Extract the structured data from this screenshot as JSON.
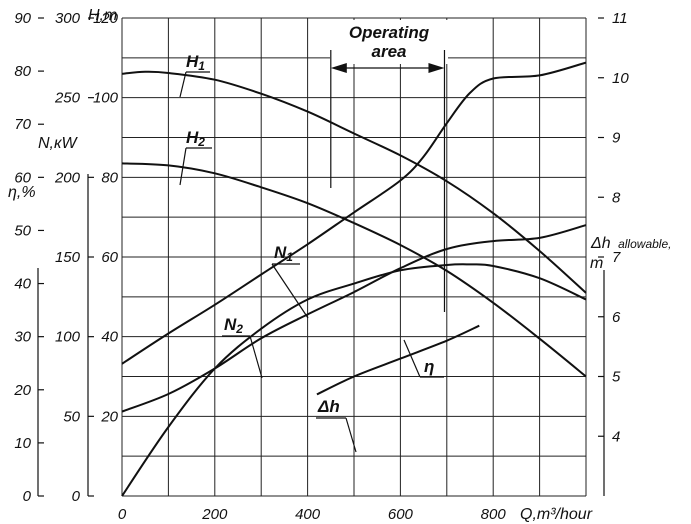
{
  "chart_data": {
    "type": "line",
    "xlabel": "Q,m³/hour",
    "xlim": [
      0,
      1000
    ],
    "x_ticks": [
      0,
      200,
      400,
      600,
      800
    ],
    "axes": {
      "H": {
        "label": "H,m",
        "lim": [
          0,
          120
        ],
        "ticks": [
          20,
          40,
          60,
          80,
          100,
          120
        ]
      },
      "N": {
        "label": "N,кW",
        "lim": [
          0,
          300
        ],
        "ticks": [
          0,
          50,
          100,
          150,
          200,
          250,
          300
        ]
      },
      "eta": {
        "label": "η,%",
        "lim": [
          0,
          90
        ],
        "ticks": [
          0,
          10,
          20,
          30,
          40,
          50,
          60,
          70,
          80,
          90
        ]
      },
      "dh": {
        "label_main": "Δh",
        "label_sub": "allowable,",
        "label_unit": "m",
        "lim": [
          3,
          11
        ],
        "ticks": [
          4,
          5,
          6,
          7,
          8,
          9,
          10,
          11
        ]
      }
    },
    "operating_area": {
      "label_line1": "Operating",
      "label_line2": "area",
      "x": [
        450,
        695
      ]
    },
    "series": [
      {
        "name": "H1",
        "label_main": "H",
        "label_sub": "1",
        "axis": "H",
        "x": [
          0,
          50,
          100,
          200,
          300,
          400,
          500,
          600,
          700,
          800,
          900,
          1000
        ],
        "y": [
          106,
          106.5,
          106.2,
          104.5,
          101,
          96.5,
          91,
          85.5,
          79,
          71,
          61.5,
          51
        ]
      },
      {
        "name": "H2",
        "label_main": "H",
        "label_sub": "2",
        "axis": "H",
        "x": [
          0,
          100,
          200,
          300,
          400,
          500,
          600,
          700,
          800,
          900,
          1000
        ],
        "y": [
          83.5,
          83,
          81,
          77.5,
          73.5,
          68.5,
          63,
          56.5,
          48.5,
          39.5,
          30
        ]
      },
      {
        "name": "N1",
        "label_main": "N",
        "label_sub": "1",
        "axis": "N",
        "x": [
          0,
          100,
          200,
          300,
          400,
          500,
          600,
          650,
          700,
          750,
          800,
          900,
          1000
        ],
        "y": [
          83,
          102,
          120,
          139,
          158,
          178,
          198,
          213,
          234,
          253,
          262,
          264,
          272
        ]
      },
      {
        "name": "N2",
        "label_main": "N",
        "label_sub": "2",
        "axis": "N",
        "x": [
          0,
          100,
          200,
          300,
          400,
          500,
          600,
          700,
          800,
          900,
          1000
        ],
        "y": [
          53,
          64,
          80,
          99,
          114,
          128,
          143,
          155,
          160,
          162,
          170
        ]
      },
      {
        "name": "η",
        "label_main": "η",
        "label_sub": "",
        "axis": "eta",
        "x": [
          0,
          100,
          200,
          300,
          400,
          500,
          600,
          700,
          750,
          800,
          900,
          1000
        ],
        "y": [
          0,
          13,
          24,
          31.5,
          37,
          40,
          42.5,
          43.5,
          43.6,
          43.3,
          41,
          37
        ]
      },
      {
        "name": "Δh",
        "label_main": "Δh",
        "label_sub": "",
        "axis": "dh",
        "x": [
          420,
          500,
          600,
          700,
          770
        ],
        "y": [
          4.7,
          5.0,
          5.3,
          5.6,
          5.85
        ]
      }
    ]
  }
}
